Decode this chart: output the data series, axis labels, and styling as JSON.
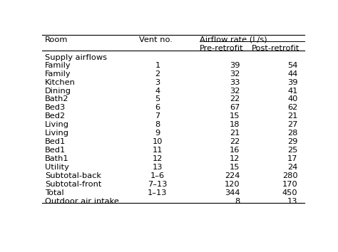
{
  "col_headers_row1": [
    "Room",
    "Vent no.",
    "Airflow rate (L/s)"
  ],
  "col_headers_row2": [
    "Pre-retrofit",
    "Post-retrofit"
  ],
  "section_label": "Supply airflows",
  "rows": [
    [
      "Family",
      "1",
      "39",
      "54"
    ],
    [
      "Family",
      "2",
      "32",
      "44"
    ],
    [
      "Kitchen",
      "3",
      "33",
      "39"
    ],
    [
      "Dining",
      "4",
      "32",
      "41"
    ],
    [
      "Bath2",
      "5",
      "22",
      "40"
    ],
    [
      "Bed3",
      "6",
      "67",
      "62"
    ],
    [
      "Bed2",
      "7",
      "15",
      "21"
    ],
    [
      "Living",
      "8",
      "18",
      "27"
    ],
    [
      "Living",
      "9",
      "21",
      "28"
    ],
    [
      "Bed1",
      "10",
      "22",
      "29"
    ],
    [
      "Bed1",
      "11",
      "16",
      "25"
    ],
    [
      "Bath1",
      "12",
      "12",
      "17"
    ],
    [
      "Utility",
      "13",
      "15",
      "24"
    ],
    [
      "Subtotal-back",
      "1–6",
      "224",
      "280"
    ],
    [
      "Subtotal-front",
      "7–13",
      "120",
      "170"
    ],
    [
      "Total",
      "1–13",
      "344",
      "450"
    ],
    [
      "Outdoor air intake",
      "",
      "8",
      "13"
    ]
  ],
  "fontsize": 8.2,
  "bg_color": "#ffffff",
  "text_color": "#000000",
  "line_color": "#000000"
}
